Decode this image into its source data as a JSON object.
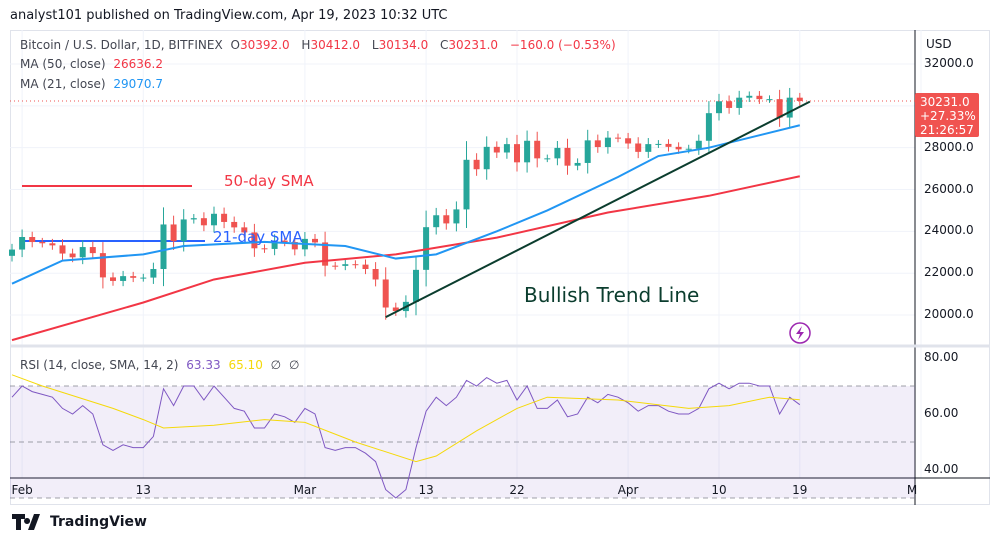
{
  "header": {
    "published": "analyst101 published on TradingView.com, Apr 19, 2023 10:32 UTC"
  },
  "legend": {
    "symbol": "Bitcoin / U.S. Dollar, 1D, BITFINEX",
    "o_label": "O",
    "o": "30392.0",
    "h_label": "H",
    "h": "30412.0",
    "l_label": "L",
    "l": "30134.0",
    "c_label": "C",
    "c": "30231.0",
    "change": "−160.0 (−0.53%)",
    "ma50_label": "MA (50, close)",
    "ma50": "26636.2",
    "ma21_label": "MA (21, close)",
    "ma21": "29070.7",
    "rsi_label": "RSI (14, close, SMA, 14, 2)",
    "rsi": "63.33",
    "rsi_sma": "65.10",
    "na1": "∅",
    "na2": "∅"
  },
  "price_axis": {
    "currency": "USD",
    "ticks": [
      "32000.0",
      "28000.0",
      "26000.0",
      "24000.0",
      "22000.0",
      "20000.0"
    ],
    "tick_values": [
      32000,
      28000,
      26000,
      24000,
      22000,
      20000
    ]
  },
  "badge": {
    "price": "30231.0",
    "pct": "+27.33%",
    "countdown": "21:26:57"
  },
  "rsi_axis": {
    "ticks": [
      "80.00",
      "60.00",
      "40.00"
    ],
    "tick_values": [
      80,
      60,
      40
    ],
    "band": [
      30,
      70
    ]
  },
  "time_axis": {
    "labels": [
      "Feb",
      "13",
      "Mar",
      "13",
      "22",
      "Apr",
      "10",
      "19",
      "M"
    ],
    "label_days": [
      1,
      13,
      29,
      41,
      50,
      61,
      70,
      78,
      90
    ]
  },
  "annotations": {
    "sma50": "50-day SMA",
    "sma21": "21-day SMA",
    "trend": "Bullish Trend Line"
  },
  "footer": {
    "brand": "TradingView"
  },
  "colors": {
    "up": "#26a69a",
    "down": "#ef5350",
    "ma50": "#f23645",
    "ma21": "#2196f3",
    "rsi": "#7e57c2",
    "rsi_sma": "#f5d90a",
    "trend": "#0b3d2e"
  },
  "chart_data": {
    "type": "candlestick",
    "start_date": "Jan 31",
    "ylim": [
      18500,
      33000
    ],
    "closes": [
      23130,
      23730,
      23490,
      23430,
      23330,
      22940,
      22760,
      23250,
      22960,
      21800,
      21630,
      21860,
      21780,
      21790,
      22200,
      24330,
      23530,
      24570,
      24630,
      24290,
      24840,
      24450,
      24190,
      23950,
      23190,
      23160,
      23560,
      23490,
      23140,
      23640,
      23470,
      22360,
      22350,
      22430,
      22410,
      22200,
      21700,
      20360,
      20190,
      20630,
      22160,
      24200,
      24770,
      24380,
      25050,
      27420,
      26970,
      28040,
      27770,
      28170,
      27300,
      28330,
      27490,
      27490,
      27990,
      27140,
      27270,
      28350,
      28030,
      28480,
      28450,
      28200,
      27800,
      28170,
      28180,
      28040,
      27920,
      27950,
      28330,
      29650,
      30220,
      29900,
      30390,
      30480,
      30320,
      30320,
      29440,
      30390,
      30231
    ],
    "first_open": 22830,
    "ma50": [
      [
        "0",
        18800
      ],
      [
        "13",
        20600
      ],
      [
        "20",
        21700
      ],
      [
        "29",
        22500
      ],
      [
        "38",
        22900
      ],
      [
        "48",
        23700
      ],
      [
        "59",
        24900
      ],
      [
        "69",
        25700
      ],
      [
        "78",
        26636.2
      ]
    ],
    "ma21": [
      [
        "0",
        21500
      ],
      [
        "5",
        22600
      ],
      [
        "13",
        22900
      ],
      [
        "17",
        23300
      ],
      [
        "25",
        23500
      ],
      [
        "33",
        23300
      ],
      [
        "38",
        22700
      ],
      [
        "42",
        22900
      ],
      [
        "48",
        24000
      ],
      [
        "53",
        25000
      ],
      [
        "60",
        26600
      ],
      [
        "64",
        27600
      ],
      [
        "69",
        28000
      ],
      [
        "78",
        29070.7
      ]
    ],
    "trend_line": [
      [
        "37",
        19900
      ],
      [
        "79",
        30200
      ]
    ],
    "rsi": [
      66,
      70,
      68,
      67,
      66,
      62,
      60,
      63,
      60,
      49,
      47,
      49,
      48,
      48,
      52,
      69,
      63,
      70,
      70,
      65,
      70,
      66,
      62,
      61,
      55,
      55,
      60,
      59,
      57,
      62,
      60,
      48,
      47,
      48,
      48,
      46,
      43,
      33,
      30,
      33,
      48,
      61,
      66,
      63,
      66,
      72,
      70,
      73,
      71,
      72,
      65,
      70,
      62,
      62,
      65,
      59,
      60,
      66,
      64,
      67,
      66,
      64,
      61,
      63,
      63,
      61,
      60,
      60,
      62,
      69,
      71,
      69,
      71,
      71,
      70,
      70,
      60,
      66,
      63.33
    ],
    "rsi_sma": [
      [
        "0",
        74
      ],
      [
        "3",
        70
      ],
      [
        "10",
        62
      ],
      [
        "13",
        58
      ],
      [
        "15",
        55
      ],
      [
        "20",
        56
      ],
      [
        "25",
        58
      ],
      [
        "29",
        57
      ],
      [
        "34",
        50
      ],
      [
        "40",
        43
      ],
      [
        "42",
        45
      ],
      [
        "46",
        54
      ],
      [
        "50",
        62
      ],
      [
        "53",
        66
      ],
      [
        "60",
        65
      ],
      [
        "67",
        62
      ],
      [
        "71",
        63
      ],
      [
        "75",
        66
      ],
      [
        "78",
        65.1
      ]
    ]
  }
}
